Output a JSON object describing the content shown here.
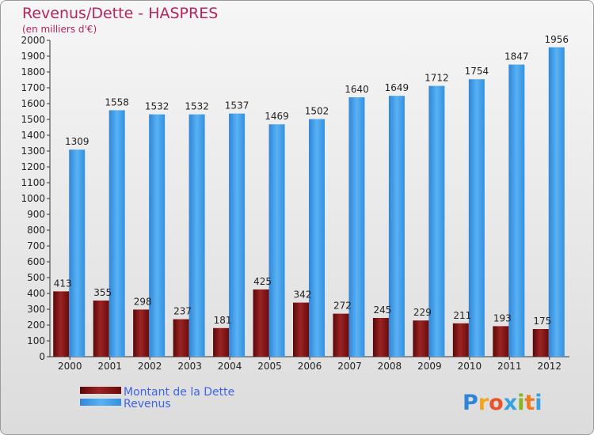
{
  "chart_data": {
    "type": "bar",
    "title": "Revenus/Dette - HASPRES",
    "subtitle": "(en milliers d'€)",
    "categories": [
      "2000",
      "2001",
      "2002",
      "2003",
      "2004",
      "2005",
      "2006",
      "2007",
      "2008",
      "2009",
      "2010",
      "2011",
      "2012"
    ],
    "series": [
      {
        "name": "Montant de la Dette",
        "color": "#7a1010",
        "values": [
          413,
          355,
          298,
          237,
          181,
          425,
          342,
          272,
          245,
          229,
          211,
          193,
          175
        ]
      },
      {
        "name": "Revenus",
        "color": "#3d9be9",
        "values": [
          1309,
          1558,
          1532,
          1532,
          1537,
          1469,
          1502,
          1640,
          1649,
          1712,
          1754,
          1847,
          1956
        ]
      }
    ],
    "ylim": [
      0,
      2000
    ],
    "ytick_step": 100,
    "grid": false,
    "legend_position": "bottom-left"
  },
  "legend": {
    "debt_label": "Montant de la Dette",
    "revenue_label": "Revenus"
  },
  "logo": {
    "text": "Proxiti"
  }
}
